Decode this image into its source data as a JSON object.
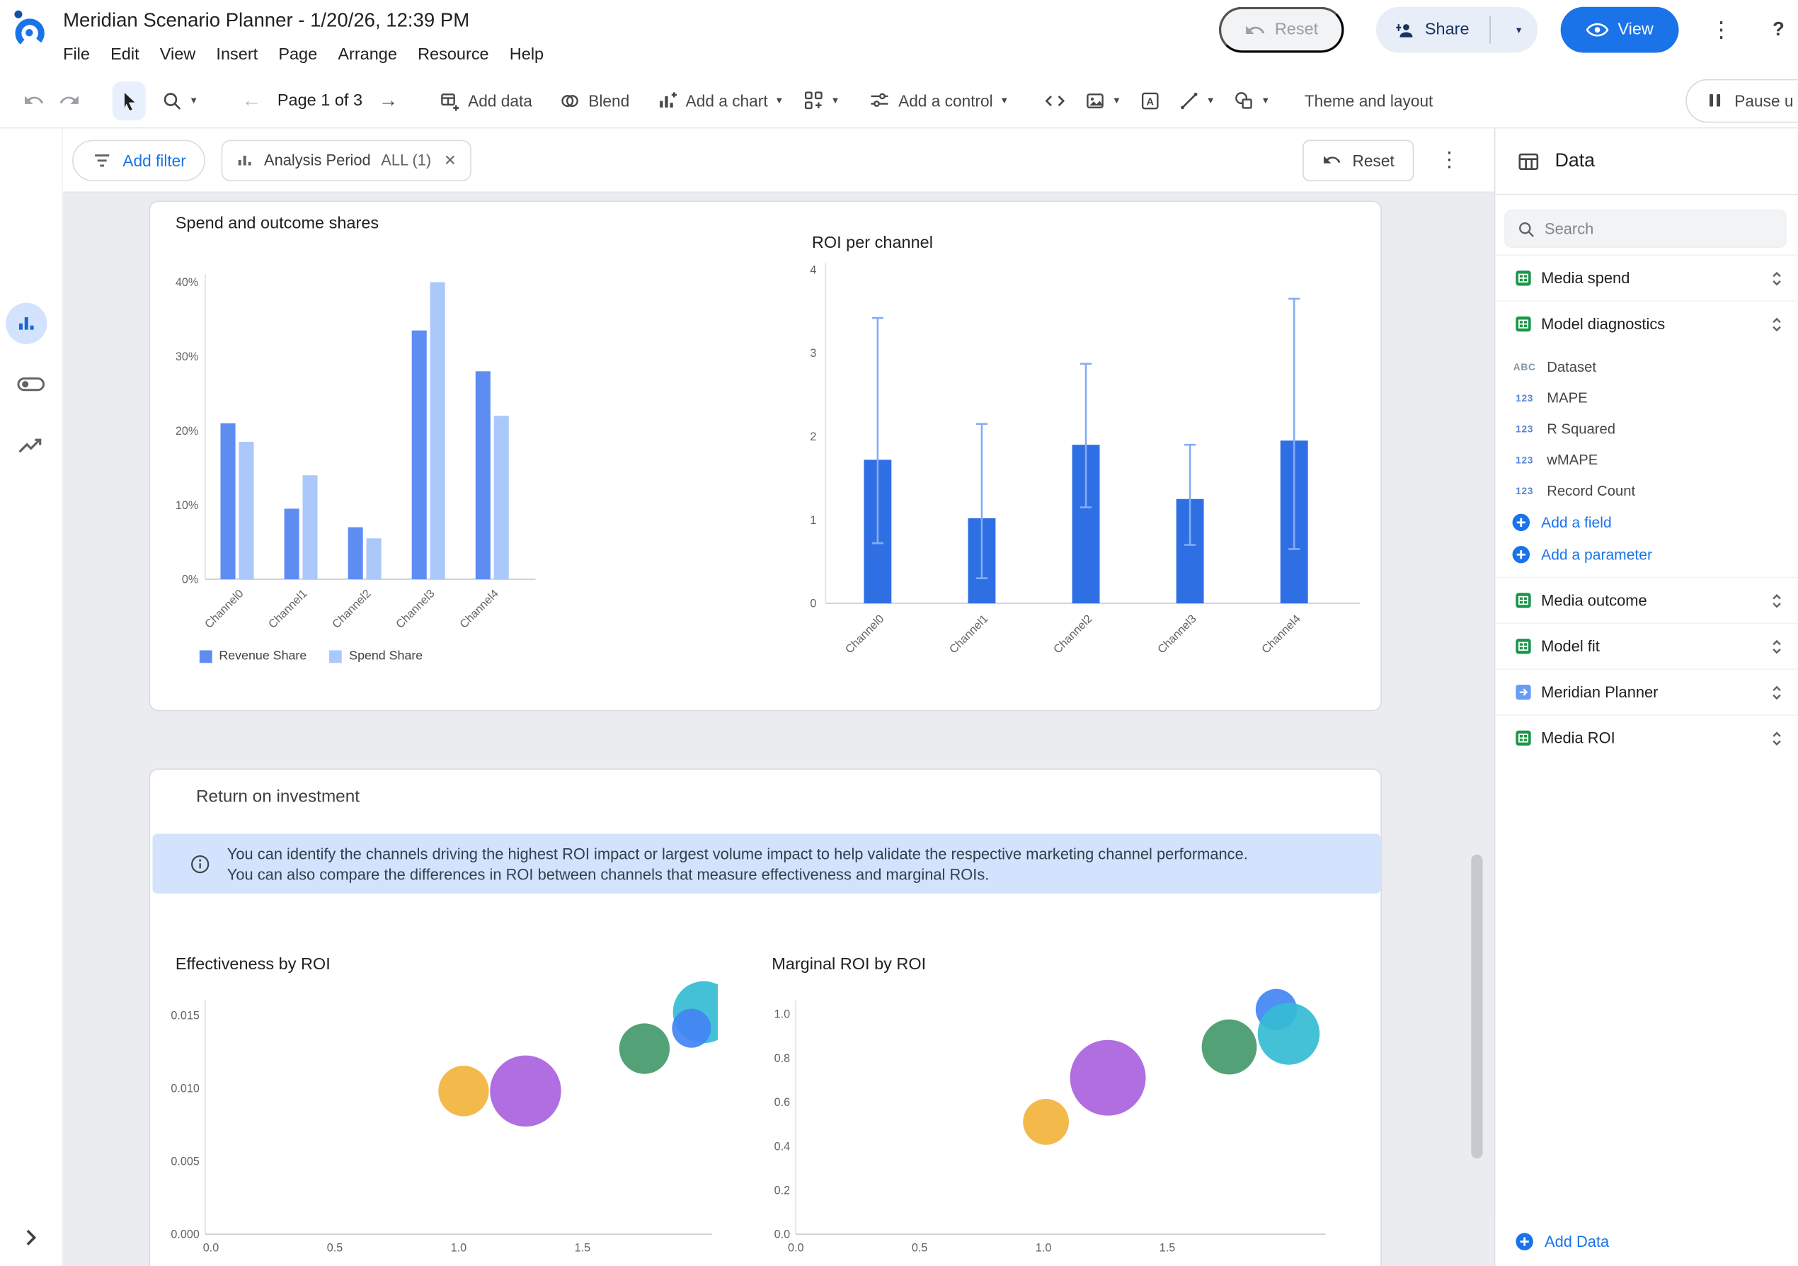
{
  "header": {
    "title": "Meridian Scenario Planner - 1/20/26, 12:39 PM",
    "menus": [
      "File",
      "Edit",
      "View",
      "Insert",
      "Page",
      "Arrange",
      "Resource",
      "Help"
    ],
    "reset_label": "Reset",
    "share_label": "Share",
    "view_label": "View",
    "help_label": "?"
  },
  "toolbar": {
    "page_indicator": "Page 1 of 3",
    "add_data_label": "Add data",
    "blend_label": "Blend",
    "add_chart_label": "Add a chart",
    "add_control_label": "Add a control",
    "theme_label": "Theme and layout",
    "pause_label": "Pause u"
  },
  "filter_bar": {
    "add_filter_label": "Add filter",
    "chip_name": "Analysis Period",
    "chip_value": "ALL (1)",
    "reset_label": "Reset"
  },
  "report": {
    "section_roi_title": "Return on investment",
    "info_text": "You can identify the channels driving the highest ROI impact or largest volume impact to help validate the respective marketing channel performance. You can also compare the differences in ROI between channels that measure effectiveness and marginal ROIs."
  },
  "data_panel": {
    "title": "Data",
    "search_placeholder": "Search",
    "sources": [
      {
        "label": "Media spend",
        "type": "sheet"
      },
      {
        "label": "Model diagnostics",
        "type": "sheet",
        "expanded": true
      },
      {
        "label": "Media outcome",
        "type": "sheet"
      },
      {
        "label": "Model fit",
        "type": "sheet"
      },
      {
        "label": "Meridian Planner",
        "type": "connector"
      },
      {
        "label": "Media ROI",
        "type": "sheet"
      }
    ],
    "diagnostics_fields": [
      {
        "name": "Dataset",
        "type": "ABC"
      },
      {
        "name": "MAPE",
        "type": "123"
      },
      {
        "name": "R Squared",
        "type": "123"
      },
      {
        "name": "wMAPE",
        "type": "123"
      },
      {
        "name": "Record Count",
        "type": "123"
      }
    ],
    "add_field_label": "Add a field",
    "add_parameter_label": "Add a parameter",
    "add_data_label": "Add Data"
  },
  "chart_data": [
    {
      "type": "bar",
      "title": "Spend and outcome shares",
      "categories": [
        "Channel0",
        "Channel1",
        "Channel2",
        "Channel3",
        "Channel4"
      ],
      "series": [
        {
          "name": "Revenue Share",
          "color": "#5e8df2",
          "values": [
            21,
            9.5,
            7,
            33.5,
            28
          ]
        },
        {
          "name": "Spend Share",
          "color": "#abc8fb",
          "values": [
            18.5,
            14,
            5.5,
            40,
            22
          ]
        }
      ],
      "ylim": [
        0,
        40
      ],
      "yticks": [
        "0%",
        "10%",
        "20%",
        "30%",
        "40%"
      ],
      "legend_position": "bottom"
    },
    {
      "type": "bar",
      "title": "ROI per channel",
      "categories": [
        "Channel0",
        "Channel1",
        "Channel2",
        "Channel3",
        "Channel4"
      ],
      "values": [
        1.72,
        1.02,
        1.9,
        1.25,
        1.95
      ],
      "error_low": [
        0.72,
        0.3,
        1.15,
        0.7,
        0.65
      ],
      "error_high": [
        3.42,
        2.15,
        2.87,
        1.9,
        3.65
      ],
      "bar_color": "#2f6fe4",
      "error_color": "#84acf7",
      "ylim": [
        0,
        4
      ],
      "yticks": [
        0,
        1,
        2,
        3,
        4
      ]
    },
    {
      "type": "scatter",
      "title": "Effectiveness by ROI",
      "xlim": [
        0,
        2.1
      ],
      "ylim": [
        0,
        0.0165
      ],
      "xticks": [
        0,
        0.5,
        1,
        1.5
      ],
      "yticks": [
        "0.000",
        "0.005",
        "0.010",
        "0.015"
      ],
      "points": [
        {
          "x": 1.02,
          "y": 0.0098,
          "r": 22,
          "color": "#f2b33c"
        },
        {
          "x": 1.27,
          "y": 0.0098,
          "r": 31,
          "color": "#a962dd"
        },
        {
          "x": 1.75,
          "y": 0.0127,
          "r": 22,
          "color": "#44996a"
        },
        {
          "x": 1.99,
          "y": 0.0152,
          "r": 27,
          "color": "#35bcd4"
        },
        {
          "x": 1.94,
          "y": 0.0141,
          "r": 17,
          "color": "#4285f4"
        }
      ]
    },
    {
      "type": "scatter",
      "title": "Marginal ROI by ROI",
      "xlim": [
        0,
        2.1
      ],
      "ylim": [
        0,
        1.08
      ],
      "xticks": [
        0,
        0.5,
        1,
        1.5
      ],
      "yticks": [
        "0.0",
        "0.2",
        "0.4",
        "0.6",
        "0.8",
        "1.0"
      ],
      "points": [
        {
          "x": 1.01,
          "y": 0.51,
          "r": 20,
          "color": "#f2b33c"
        },
        {
          "x": 1.26,
          "y": 0.71,
          "r": 33,
          "color": "#a962dd"
        },
        {
          "x": 1.75,
          "y": 0.85,
          "r": 24,
          "color": "#44996a"
        },
        {
          "x": 1.94,
          "y": 1.02,
          "r": 18,
          "color": "#4285f4"
        },
        {
          "x": 1.99,
          "y": 0.91,
          "r": 27,
          "color": "#35bcd4"
        }
      ]
    }
  ]
}
